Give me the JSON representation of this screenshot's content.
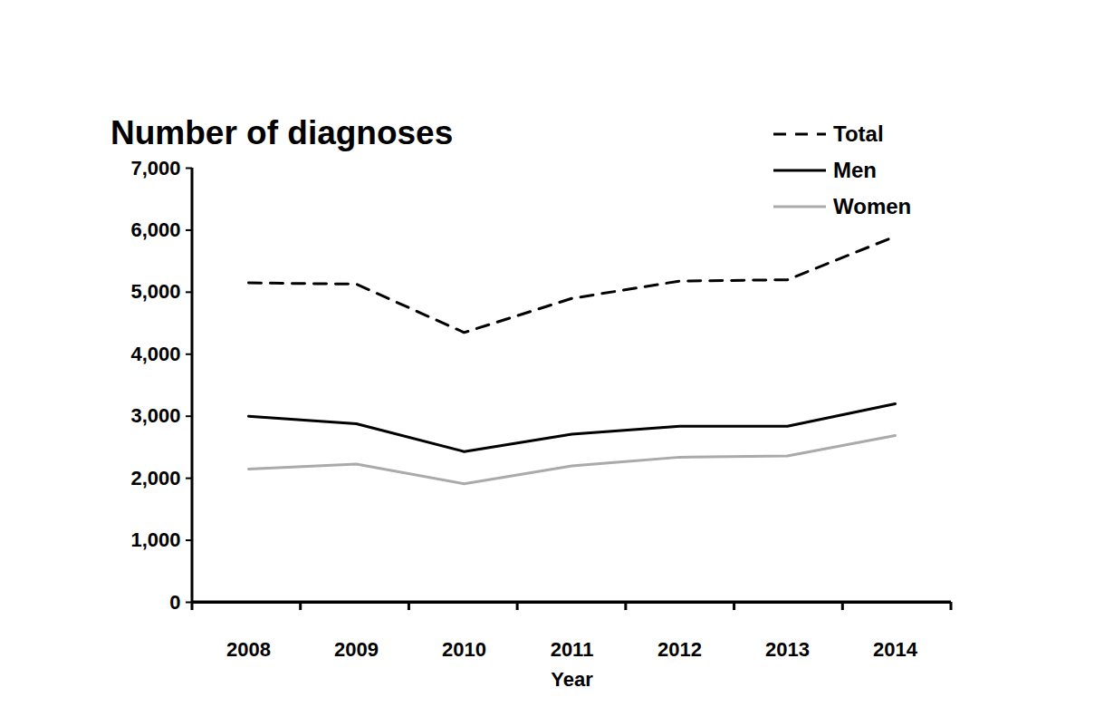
{
  "chart_data": {
    "type": "line",
    "title": "Number of diagnoses",
    "x_label": "Year",
    "categories": [
      "2008",
      "2009",
      "2010",
      "2011",
      "2012",
      "2013",
      "2014"
    ],
    "series": [
      {
        "name": "Total",
        "color": "#000000",
        "line_style": "dashed",
        "values": [
          5150,
          5130,
          4350,
          4900,
          5180,
          5200,
          5900
        ]
      },
      {
        "name": "Men",
        "color": "#000000",
        "line_style": "solid",
        "values": [
          3000,
          2880,
          2430,
          2710,
          2840,
          2840,
          3200
        ]
      },
      {
        "name": "Women",
        "color": "#aaaaaa",
        "line_style": "solid",
        "values": [
          2150,
          2230,
          1910,
          2200,
          2340,
          2360,
          2690
        ]
      }
    ],
    "ylim": [
      0,
      7000
    ],
    "yticks": [
      0,
      {
        "value": 1000,
        "label": "1,000"
      },
      {
        "value": 2000,
        "label": "2,000"
      },
      {
        "value": 3000,
        "label": "3,000"
      },
      {
        "value": 4000,
        "label": "4,000"
      },
      {
        "value": 5000,
        "label": "5,000"
      },
      {
        "value": 6000,
        "label": "6,000"
      },
      {
        "value": 7000,
        "label": "7,000"
      }
    ],
    "grid": false,
    "legend": "top-right"
  }
}
